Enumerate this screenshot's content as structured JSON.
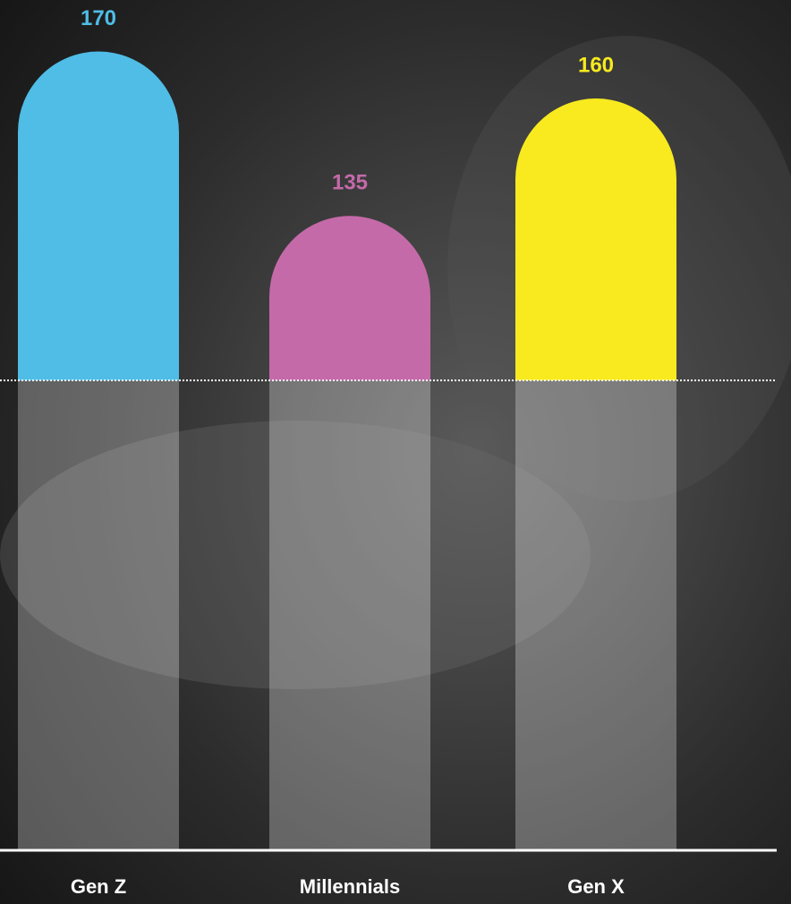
{
  "chart_data": {
    "type": "bar",
    "categories": [
      "Gen Z",
      "Millennials",
      "Gen X"
    ],
    "values": [
      170,
      135,
      160
    ],
    "colors": [
      "#4fbde6",
      "#c46aa9",
      "#f8ea1f"
    ],
    "ylim": [
      0,
      180
    ],
    "reference_line": 100
  }
}
